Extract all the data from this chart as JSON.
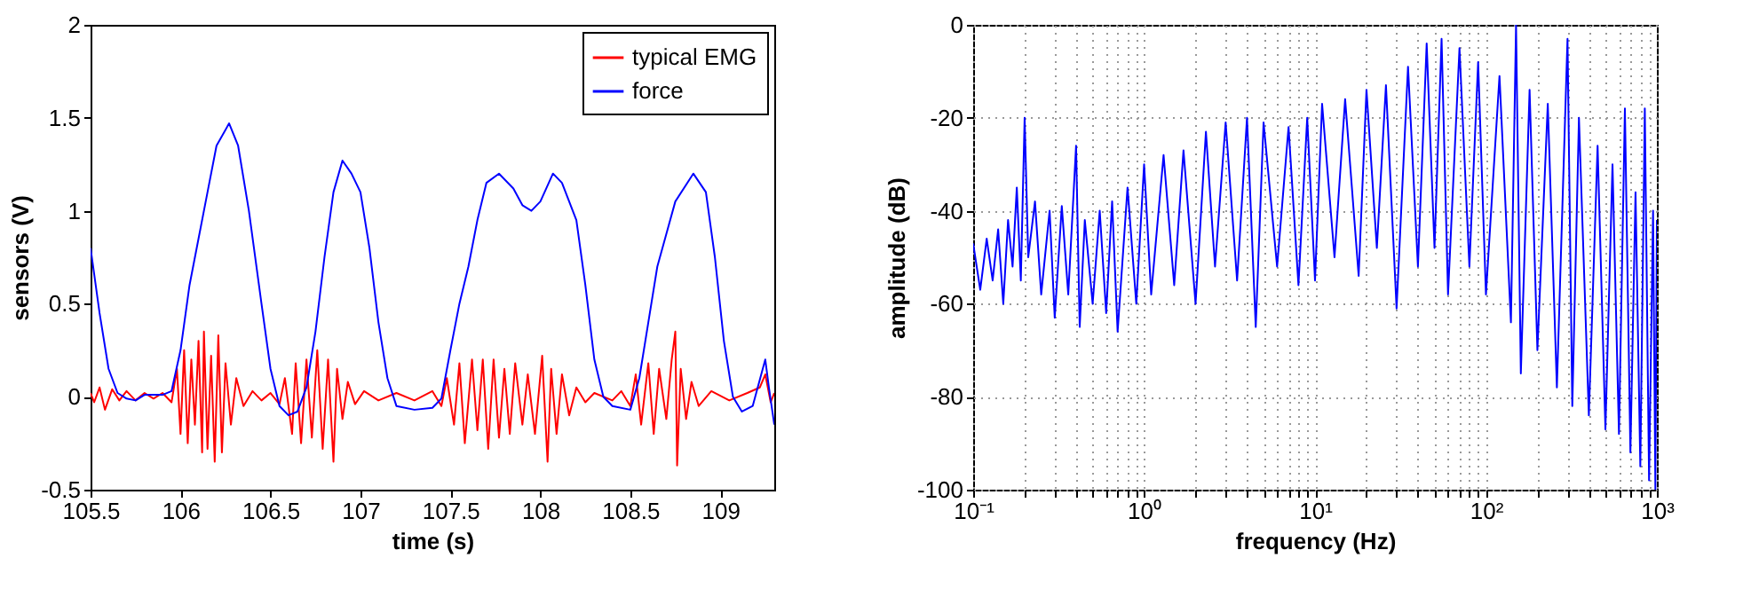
{
  "chart_data": [
    {
      "type": "line",
      "xlabel": "time (s)",
      "ylabel": "sensors (V)",
      "xlim": [
        105.5,
        109.3
      ],
      "ylim": [
        -0.5,
        2
      ],
      "xticks": [
        105.5,
        106,
        106.5,
        107,
        107.5,
        108,
        108.5,
        109
      ],
      "yticks": [
        -0.5,
        0,
        0.5,
        1,
        1.5,
        2
      ],
      "legend": "top right",
      "grid": false,
      "marker": "none",
      "series": [
        {
          "name": "typical EMG",
          "color": "#ff0000",
          "x": [
            105.5,
            105.52,
            105.55,
            105.58,
            105.62,
            105.66,
            105.7,
            105.75,
            105.8,
            105.85,
            105.9,
            105.95,
            105.98,
            106.0,
            106.02,
            106.04,
            106.06,
            106.08,
            106.1,
            106.12,
            106.13,
            106.15,
            106.17,
            106.19,
            106.21,
            106.23,
            106.25,
            106.28,
            106.31,
            106.35,
            106.4,
            106.45,
            106.5,
            106.55,
            106.58,
            106.62,
            106.64,
            106.67,
            106.7,
            106.73,
            106.76,
            106.79,
            106.82,
            106.85,
            106.87,
            106.9,
            106.93,
            106.97,
            107.02,
            107.1,
            107.2,
            107.3,
            107.4,
            107.45,
            107.48,
            107.52,
            107.55,
            107.58,
            107.62,
            107.65,
            107.68,
            107.71,
            107.74,
            107.77,
            107.8,
            107.83,
            107.86,
            107.9,
            107.93,
            107.97,
            108.01,
            108.04,
            108.06,
            108.09,
            108.12,
            108.16,
            108.2,
            108.25,
            108.3,
            108.4,
            108.45,
            108.5,
            108.53,
            108.56,
            108.6,
            108.63,
            108.66,
            108.7,
            108.73,
            108.75,
            108.76,
            108.78,
            108.81,
            108.84,
            108.88,
            108.95,
            109.05,
            109.15,
            109.22,
            109.25,
            109.28,
            109.3
          ],
          "values": [
            0.02,
            -0.03,
            0.05,
            -0.07,
            0.04,
            -0.02,
            0.03,
            -0.02,
            0.02,
            -0.01,
            0.02,
            -0.03,
            0.15,
            -0.2,
            0.25,
            -0.25,
            0.2,
            -0.15,
            0.3,
            -0.3,
            0.35,
            -0.28,
            0.22,
            -0.35,
            0.33,
            -0.3,
            0.18,
            -0.15,
            0.1,
            -0.05,
            0.03,
            -0.02,
            0.02,
            -0.04,
            0.1,
            -0.2,
            0.18,
            -0.25,
            0.2,
            -0.22,
            0.25,
            -0.28,
            0.2,
            -0.35,
            0.15,
            -0.12,
            0.08,
            -0.04,
            0.03,
            -0.02,
            0.02,
            -0.02,
            0.03,
            -0.05,
            0.1,
            -0.15,
            0.18,
            -0.25,
            0.2,
            -0.18,
            0.2,
            -0.28,
            0.2,
            -0.22,
            0.15,
            -0.2,
            0.18,
            -0.15,
            0.12,
            -0.2,
            0.22,
            -0.35,
            0.15,
            -0.2,
            0.12,
            -0.1,
            0.05,
            -0.03,
            0.02,
            -0.02,
            0.03,
            -0.05,
            0.12,
            -0.15,
            0.18,
            -0.2,
            0.15,
            -0.12,
            0.2,
            0.35,
            -0.37,
            0.15,
            -0.12,
            0.08,
            -0.05,
            0.03,
            -0.02,
            0.02,
            0.05,
            0.12,
            -0.03,
            0.02
          ]
        },
        {
          "name": "force",
          "color": "#0000ff",
          "x": [
            105.5,
            105.55,
            105.6,
            105.65,
            105.7,
            105.75,
            105.8,
            105.9,
            105.95,
            106.0,
            106.05,
            106.1,
            106.15,
            106.2,
            106.27,
            106.32,
            106.38,
            106.45,
            106.5,
            106.55,
            106.6,
            106.65,
            106.7,
            106.75,
            106.8,
            106.85,
            106.9,
            106.95,
            107.0,
            107.05,
            107.1,
            107.15,
            107.2,
            107.3,
            107.4,
            107.45,
            107.5,
            107.55,
            107.6,
            107.65,
            107.7,
            107.77,
            107.85,
            107.9,
            107.95,
            108.0,
            108.07,
            108.12,
            108.2,
            108.25,
            108.3,
            108.35,
            108.4,
            108.5,
            108.55,
            108.6,
            108.65,
            108.75,
            108.85,
            108.92,
            108.97,
            109.02,
            109.07,
            109.12,
            109.18,
            109.25,
            109.27,
            109.3
          ],
          "values": [
            0.8,
            0.45,
            0.15,
            0.02,
            -0.01,
            -0.02,
            0.01,
            0.01,
            0.03,
            0.25,
            0.6,
            0.85,
            1.1,
            1.35,
            1.47,
            1.35,
            1.0,
            0.5,
            0.15,
            -0.05,
            -0.1,
            -0.08,
            0.05,
            0.35,
            0.75,
            1.1,
            1.27,
            1.2,
            1.1,
            0.8,
            0.4,
            0.1,
            -0.05,
            -0.07,
            -0.06,
            -0.01,
            0.25,
            0.5,
            0.7,
            0.95,
            1.15,
            1.2,
            1.12,
            1.03,
            1.0,
            1.05,
            1.2,
            1.15,
            0.95,
            0.6,
            0.2,
            0.0,
            -0.05,
            -0.07,
            0.1,
            0.4,
            0.7,
            1.05,
            1.2,
            1.1,
            0.75,
            0.3,
            0.0,
            -0.08,
            -0.05,
            0.2,
            0.05,
            -0.15
          ]
        }
      ]
    },
    {
      "type": "line",
      "xlabel": "frequency (Hz)",
      "ylabel": "amplitude (dB)",
      "log": "x",
      "xlim": [
        0.1,
        1000
      ],
      "ylim": [
        -100,
        0
      ],
      "xticks": [
        {
          "value": 0.1,
          "label": "10⁻¹"
        },
        {
          "value": 0.2,
          "label": null
        },
        {
          "value": 0.3,
          "label": null
        },
        {
          "value": 0.4,
          "label": null
        },
        {
          "value": 0.5,
          "label": null
        },
        {
          "value": 0.6,
          "label": null
        },
        {
          "value": 0.7,
          "label": null
        },
        {
          "value": 0.8,
          "label": null
        },
        {
          "value": 0.9,
          "label": null
        },
        {
          "value": 1,
          "label": "10⁰"
        },
        {
          "value": 2,
          "label": null
        },
        {
          "value": 3,
          "label": null
        },
        {
          "value": 4,
          "label": null
        },
        {
          "value": 5,
          "label": null
        },
        {
          "value": 6,
          "label": null
        },
        {
          "value": 7,
          "label": null
        },
        {
          "value": 8,
          "label": null
        },
        {
          "value": 9,
          "label": null
        },
        {
          "value": 10,
          "label": "10¹"
        },
        {
          "value": 20,
          "label": null
        },
        {
          "value": 30,
          "label": null
        },
        {
          "value": 40,
          "label": null
        },
        {
          "value": 50,
          "label": null
        },
        {
          "value": 60,
          "label": null
        },
        {
          "value": 70,
          "label": null
        },
        {
          "value": 80,
          "label": null
        },
        {
          "value": 90,
          "label": null
        },
        {
          "value": 100,
          "label": "10²"
        },
        {
          "value": 200,
          "label": null
        },
        {
          "value": 300,
          "label": null
        },
        {
          "value": 400,
          "label": null
        },
        {
          "value": 500,
          "label": null
        },
        {
          "value": 600,
          "label": null
        },
        {
          "value": 700,
          "label": null
        },
        {
          "value": 800,
          "label": null
        },
        {
          "value": 900,
          "label": null
        },
        {
          "value": 1000,
          "label": "10³"
        }
      ],
      "yticks": [
        -100,
        -80,
        -60,
        -40,
        -20,
        0
      ],
      "grid": true,
      "marker": "none",
      "series": [
        {
          "color": "#0000ff",
          "x": [
            0.1,
            0.11,
            0.12,
            0.13,
            0.14,
            0.15,
            0.16,
            0.17,
            0.18,
            0.19,
            0.2,
            0.21,
            0.23,
            0.25,
            0.28,
            0.3,
            0.33,
            0.36,
            0.4,
            0.42,
            0.45,
            0.5,
            0.55,
            0.6,
            0.65,
            0.7,
            0.8,
            0.9,
            1,
            1.1,
            1.3,
            1.5,
            1.7,
            2,
            2.3,
            2.6,
            3,
            3.5,
            4,
            4.5,
            5,
            6,
            7,
            8,
            9,
            10,
            11,
            13,
            15,
            18,
            20,
            23,
            26,
            30,
            35,
            40,
            45,
            50,
            55,
            60,
            70,
            80,
            90,
            100,
            120,
            140,
            150,
            160,
            180,
            200,
            230,
            260,
            300,
            320,
            350,
            400,
            450,
            500,
            550,
            600,
            650,
            700,
            750,
            800,
            850,
            900,
            950,
            980,
            1000
          ],
          "values": [
            -47,
            -57,
            -46,
            -55,
            -44,
            -60,
            -42,
            -52,
            -35,
            -55,
            -20,
            -50,
            -38,
            -58,
            -40,
            -63,
            -39,
            -58,
            -26,
            -65,
            -42,
            -60,
            -40,
            -62,
            -38,
            -66,
            -35,
            -60,
            -30,
            -58,
            -28,
            -56,
            -27,
            -60,
            -23,
            -52,
            -21,
            -55,
            -20,
            -65,
            -21,
            -52,
            -22,
            -56,
            -20,
            -55,
            -17,
            -50,
            -16,
            -54,
            -14,
            -48,
            -13,
            -61,
            -9,
            -52,
            -4,
            -48,
            -3,
            -58,
            -5,
            -52,
            -8,
            -58,
            -11,
            -64,
            0,
            -75,
            -14,
            -70,
            -17,
            -78,
            -3,
            -82,
            -20,
            -84,
            -26,
            -87,
            -30,
            -88,
            -18,
            -92,
            -36,
            -95,
            -18,
            -98,
            -40,
            -100,
            -42
          ]
        }
      ]
    }
  ]
}
